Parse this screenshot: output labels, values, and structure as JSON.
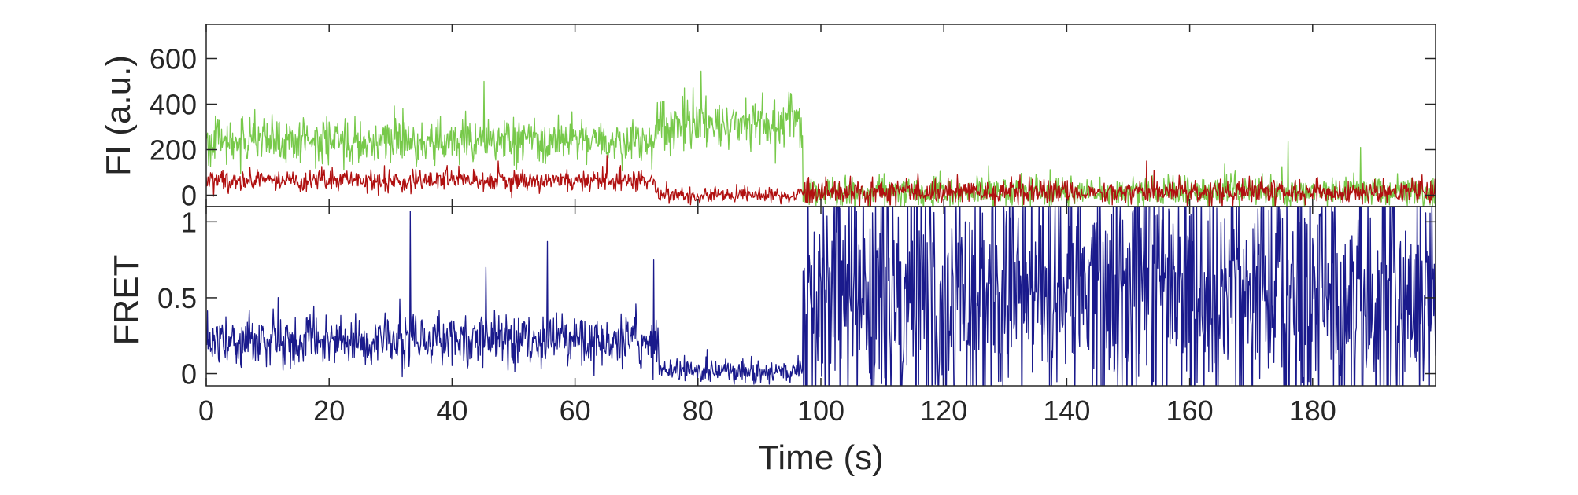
{
  "chart_data": [
    {
      "type": "line",
      "panel": "top",
      "ylabel": "FI (a.u.)",
      "xlabel": "",
      "xlim": [
        0,
        200
      ],
      "ylim": [
        -50,
        750
      ],
      "yticks": [
        0,
        200,
        400,
        600
      ],
      "ytick_labels": [
        "0",
        "200",
        "400",
        "600"
      ],
      "grid": false,
      "series": [
        {
          "color": "#77c94a",
          "segments": [
            {
              "x_start": 0,
              "x_end": 73,
              "mean": 235,
              "noise": 65
            },
            {
              "x_start": 73,
              "x_end": 97,
              "mean": 315,
              "noise": 75
            },
            {
              "x_start": 97,
              "x_end": 200,
              "mean": 15,
              "noise": 45
            }
          ],
          "spikes": [
            {
              "x": 45.2,
              "y": 500
            },
            {
              "x": 80.5,
              "y": 545
            },
            {
              "x": 176,
              "y": 235
            },
            {
              "x": 187.8,
              "y": 210
            }
          ]
        },
        {
          "color": "#b01010",
          "segments": [
            {
              "x_start": 0,
              "x_end": 73,
              "mean": 65,
              "noise": 28
            },
            {
              "x_start": 73,
              "x_end": 97,
              "mean": 0,
              "noise": 22
            },
            {
              "x_start": 97,
              "x_end": 200,
              "mean": 15,
              "noise": 35
            }
          ],
          "spikes": [
            {
              "x": 47.5,
              "y": 150
            },
            {
              "x": 65.2,
              "y": 175
            },
            {
              "x": 153,
              "y": 150
            }
          ]
        }
      ]
    },
    {
      "type": "line",
      "panel": "bottom",
      "ylabel": "FRET",
      "xlabel": "Time (s)",
      "xlim": [
        0,
        200
      ],
      "ylim": [
        -0.08,
        1.1
      ],
      "yticks": [
        0,
        0.5,
        1
      ],
      "ytick_labels": [
        "0",
        "0.5",
        "1"
      ],
      "xticks": [
        0,
        20,
        40,
        60,
        80,
        100,
        120,
        140,
        160,
        180
      ],
      "xtick_labels": [
        "0",
        "20",
        "40",
        "60",
        "80",
        "100",
        "120",
        "140",
        "160",
        "180"
      ],
      "grid": false,
      "series": [
        {
          "color": "#1a1a8c",
          "segments": [
            {
              "x_start": 0,
              "x_end": 73.5,
              "mean": 0.22,
              "noise": 0.11
            },
            {
              "x_start": 73.5,
              "x_end": 97,
              "mean": 0.02,
              "noise": 0.05
            },
            {
              "x_start": 97,
              "x_end": 200,
              "mean": 0.5,
              "noise": 0.6
            }
          ],
          "spikes": [
            {
              "x": 33.2,
              "y": 1.07
            },
            {
              "x": 55.5,
              "y": 0.87
            },
            {
              "x": 72.8,
              "y": 0.75
            },
            {
              "x": 45.5,
              "y": 0.7
            }
          ]
        }
      ]
    }
  ]
}
